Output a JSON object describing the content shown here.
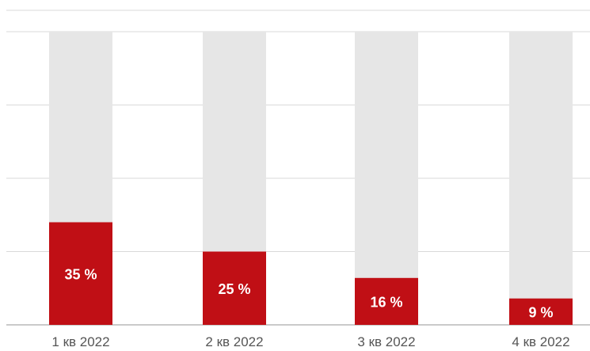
{
  "chart_data": {
    "type": "bar",
    "categories": [
      "1 кв 2022",
      "2 кв 2022",
      "3 кв 2022",
      "4 кв 2022"
    ],
    "values": [
      35,
      25,
      16,
      9
    ],
    "value_labels": [
      "35 %",
      "25 %",
      "16 %",
      "9 %"
    ],
    "ylim": [
      0,
      100
    ],
    "background_bars": true,
    "grid": true,
    "title": "",
    "xlabel": "",
    "ylabel": "",
    "colors": {
      "bar": "#c00f15",
      "bar_background": "#e6e6e6",
      "grid": "#d9d9d9",
      "label_text": "#ffffff",
      "tick_text": "#555555"
    }
  }
}
